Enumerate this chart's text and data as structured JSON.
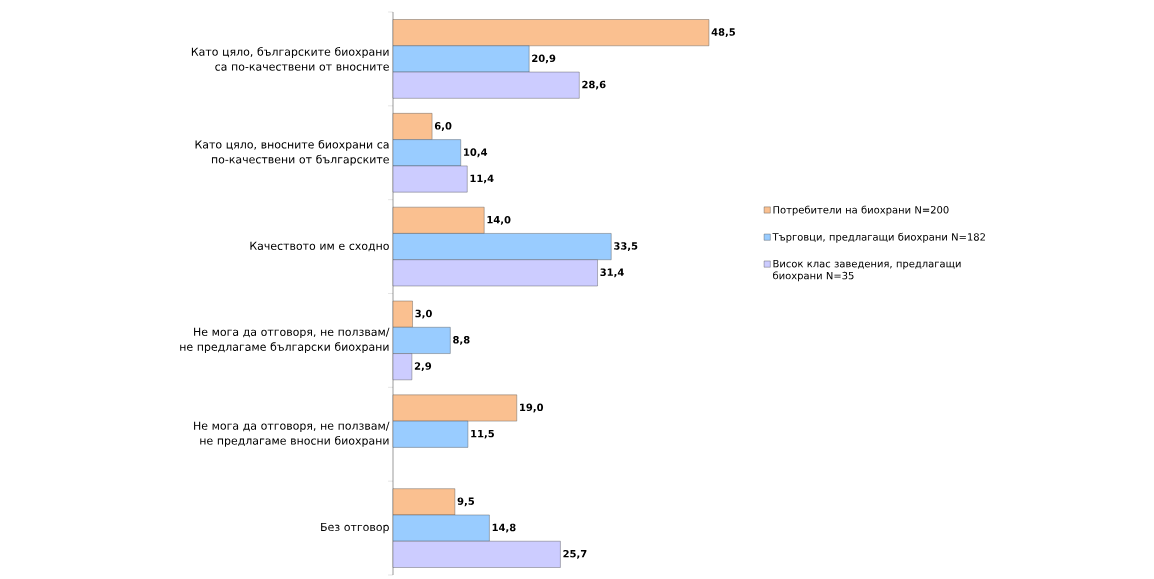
{
  "chart_data": {
    "type": "bar",
    "orientation": "horizontal",
    "categories": [
      "Като цяло, българските биохрани са по-качествени от вносните",
      "Като цяло, вносните биохрани са по-качествени от българските",
      "Качеството им е сходно",
      "Не мога да отговоря, не ползвам/ не предлагаме български биохрани",
      "Не мога да отговоря, не ползвам/ не предлагаме вносни биохрани",
      "Без отговор"
    ],
    "series": [
      {
        "name": "Потребители на биохрани N=200",
        "color": "#fac090",
        "values": [
          48.5,
          6.0,
          14.0,
          3.0,
          19.0,
          9.5
        ],
        "value_labels": [
          "48,5",
          "6,0",
          "14,0",
          "3,0",
          "19,0",
          "9,5"
        ]
      },
      {
        "name": "Търговци, предлагащи биохрани N=182",
        "color": "#99ccff",
        "values": [
          20.9,
          10.4,
          33.5,
          8.8,
          11.5,
          14.8
        ],
        "value_labels": [
          "20,9",
          "10,4",
          "33,5",
          "8,8",
          "11,5",
          "14,8"
        ]
      },
      {
        "name": "Висок клас заведения, предлагащи биохрани N=35",
        "color": "#ccccff",
        "values": [
          28.6,
          11.4,
          31.4,
          2.9,
          null,
          25.7
        ],
        "value_labels": [
          "28,6",
          "11,4",
          "31,4",
          "2,9",
          null,
          "25,7"
        ]
      }
    ],
    "legend": "right"
  }
}
